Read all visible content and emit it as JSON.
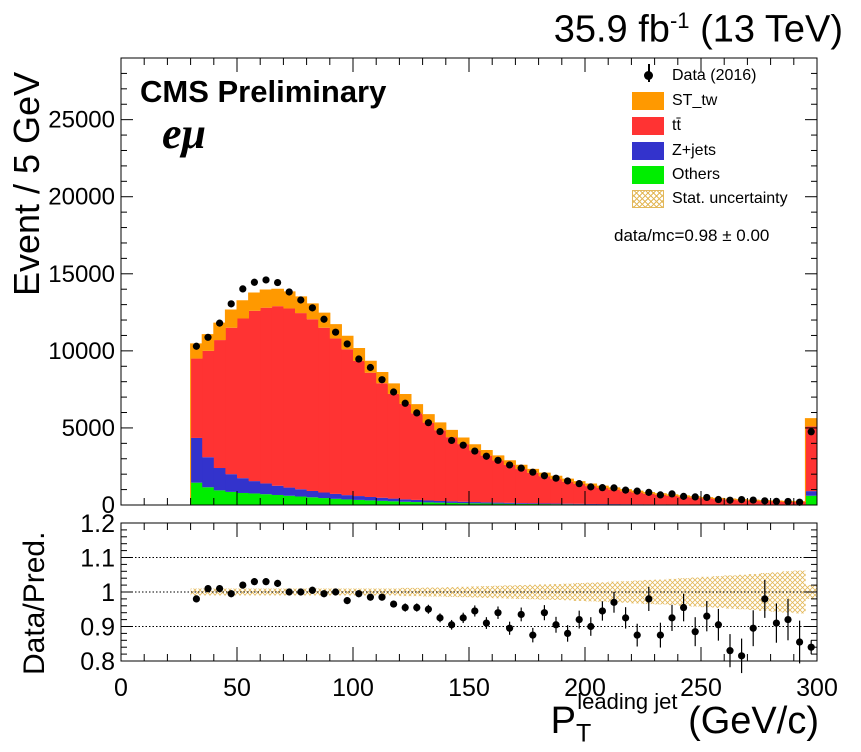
{
  "header": {
    "lumi_value": "35.9 fb",
    "lumi_exp": "-1",
    "lumi_energy": " (13 TeV)",
    "cms_label": "CMS Preliminary",
    "channel_label": "eμ"
  },
  "ratio_text": "data/mc=0.98 ± 0.00",
  "legend": [
    {
      "label": "Data (2016)",
      "kind": "data",
      "color": "#000000"
    },
    {
      "label": "ST_tw",
      "kind": "fill",
      "color": "#ff9900"
    },
    {
      "label": "tt̄",
      "kind": "fill",
      "color": "#ff3333"
    },
    {
      "label": "Z+jets",
      "kind": "fill",
      "color": "#3333cc"
    },
    {
      "label": "Others",
      "kind": "fill",
      "color": "#00ee00"
    },
    {
      "label": "Stat. uncertainty",
      "kind": "hatch",
      "color": "#e3b85a"
    }
  ],
  "axes": {
    "ylabel_main": "Event / 5 GeV",
    "ylabel_ratio": "Data/Pred.",
    "xlabel_main": "P",
    "xlabel_sub": "T",
    "xlabel_sup": "leading jet",
    "xlabel_unit": " (GeV/c)"
  },
  "chart_data": {
    "type": "bar",
    "stacked": true,
    "x_bin_width": 5,
    "x_bin_low_edges": [
      30,
      35,
      40,
      45,
      50,
      55,
      60,
      65,
      70,
      75,
      80,
      85,
      90,
      95,
      100,
      105,
      110,
      115,
      120,
      125,
      130,
      135,
      140,
      145,
      150,
      155,
      160,
      165,
      170,
      175,
      180,
      185,
      190,
      195,
      200,
      205,
      210,
      215,
      220,
      225,
      230,
      235,
      240,
      245,
      250,
      255,
      260,
      265,
      270,
      275,
      280,
      285,
      290,
      295
    ],
    "xlim": [
      0,
      300
    ],
    "ylim": [
      0,
      29000
    ],
    "x_ticks": [
      "0",
      "50",
      "100",
      "150",
      "200",
      "250",
      "300"
    ],
    "y_ticks": [
      "0",
      "5000",
      "10000",
      "15000",
      "20000",
      "25000"
    ],
    "series": [
      {
        "name": "Others",
        "color": "#00ee00",
        "values": [
          1450,
          1150,
          950,
          850,
          780,
          750,
          700,
          650,
          600,
          550,
          500,
          450,
          400,
          360,
          330,
          300,
          270,
          240,
          210,
          190,
          170,
          150,
          135,
          120,
          110,
          100,
          90,
          80,
          70,
          65,
          60,
          55,
          50,
          45,
          40,
          38,
          35,
          32,
          30,
          28,
          26,
          24,
          22,
          20,
          18,
          17,
          16,
          15,
          14,
          13,
          12,
          11,
          10,
          600
        ]
      },
      {
        "name": "Z+jets",
        "color": "#3333cc",
        "values": [
          2900,
          1950,
          1450,
          1150,
          960,
          800,
          700,
          600,
          530,
          470,
          410,
          360,
          320,
          280,
          250,
          220,
          200,
          175,
          155,
          140,
          125,
          110,
          100,
          90,
          80,
          72,
          65,
          58,
          52,
          47,
          42,
          38,
          34,
          30,
          27,
          24,
          22,
          20,
          18,
          16,
          15,
          14,
          13,
          12,
          11,
          10,
          9,
          8,
          8,
          7,
          7,
          6,
          6,
          300
        ]
      },
      {
        "name": "tt̄",
        "color": "#ff3333",
        "values": [
          5150,
          6900,
          8300,
          9500,
          10360,
          11050,
          11400,
          11650,
          11620,
          11430,
          11140,
          10690,
          10080,
          9460,
          8770,
          8060,
          7430,
          6790,
          6200,
          5620,
          5050,
          4590,
          4165,
          3740,
          3360,
          3030,
          2730,
          2460,
          2210,
          1980,
          1770,
          1590,
          1430,
          1290,
          1160,
          1040,
          940,
          845,
          760,
          680,
          615,
          550,
          495,
          445,
          400,
          355,
          320,
          290,
          260,
          235,
          215,
          195,
          180,
          4200
        ]
      },
      {
        "name": "ST_tw",
        "color": "#ff9900",
        "values": [
          950,
          1050,
          1100,
          1150,
          1150,
          1150,
          1150,
          1100,
          1080,
          1050,
          1000,
          950,
          900,
          850,
          800,
          750,
          700,
          650,
          600,
          560,
          520,
          480,
          440,
          400,
          360,
          330,
          300,
          270,
          245,
          220,
          200,
          180,
          165,
          150,
          135,
          122,
          110,
          100,
          90,
          82,
          74,
          67,
          61,
          55,
          50,
          46,
          42,
          38,
          35,
          32,
          29,
          27,
          25,
          500
        ]
      }
    ],
    "data_values": [
      10300,
      10880,
      11800,
      13050,
      14020,
      14450,
      14600,
      14430,
      13820,
      13300,
      12790,
      12050,
      11210,
      10450,
      9470,
      8920,
      8130,
      7330,
      6600,
      5975,
      5340,
      4765,
      4190,
      3880,
      3500,
      3165,
      2900,
      2600,
      2390,
      2130,
      1900,
      1740,
      1560,
      1385,
      1175,
      1125,
      1110,
      965,
      900,
      820,
      655,
      720,
      560,
      525,
      490,
      355,
      310,
      350,
      320,
      270,
      240,
      230,
      180,
      4750
    ],
    "ratio": {
      "ylabel": "Data/Pred.",
      "ylim": [
        0.8,
        1.2
      ],
      "y_ticks": [
        "0.8",
        "0.9",
        "1",
        "1.1",
        "1.2"
      ],
      "values": [
        0.98,
        1.01,
        1.01,
        0.995,
        1.02,
        1.03,
        1.03,
        1.025,
        1.0,
        1.0,
        1.005,
        0.995,
        1.0,
        0.975,
        0.995,
        0.985,
        0.985,
        0.965,
        0.955,
        0.955,
        0.95,
        0.925,
        0.905,
        0.925,
        0.945,
        0.91,
        0.94,
        0.895,
        0.935,
        0.875,
        0.94,
        0.905,
        0.88,
        0.92,
        0.9,
        0.945,
        0.97,
        0.925,
        0.875,
        0.98,
        0.875,
        0.925,
        0.955,
        0.885,
        0.93,
        0.905,
        0.83,
        0.815,
        0.895,
        0.98,
        0.91,
        0.92,
        0.855,
        0.84
      ],
      "errors": [
        0.01,
        0.01,
        0.01,
        0.01,
        0.01,
        0.01,
        0.01,
        0.01,
        0.01,
        0.01,
        0.01,
        0.01,
        0.01,
        0.01,
        0.01,
        0.01,
        0.01,
        0.01,
        0.012,
        0.012,
        0.013,
        0.013,
        0.014,
        0.015,
        0.016,
        0.017,
        0.018,
        0.019,
        0.02,
        0.021,
        0.022,
        0.023,
        0.024,
        0.026,
        0.027,
        0.028,
        0.03,
        0.031,
        0.033,
        0.035,
        0.036,
        0.038,
        0.04,
        0.042,
        0.044,
        0.046,
        0.048,
        0.05,
        0.052,
        0.055,
        0.057,
        0.06,
        0.062,
        0.02
      ],
      "stat_band": [
        0.01,
        0.01,
        0.01,
        0.01,
        0.01,
        0.01,
        0.01,
        0.01,
        0.01,
        0.01,
        0.01,
        0.01,
        0.01,
        0.01,
        0.01,
        0.01,
        0.01,
        0.01,
        0.012,
        0.012,
        0.013,
        0.013,
        0.014,
        0.015,
        0.016,
        0.017,
        0.018,
        0.019,
        0.02,
        0.021,
        0.022,
        0.023,
        0.024,
        0.026,
        0.027,
        0.028,
        0.03,
        0.031,
        0.033,
        0.035,
        0.036,
        0.038,
        0.04,
        0.042,
        0.044,
        0.046,
        0.048,
        0.05,
        0.052,
        0.055,
        0.057,
        0.06,
        0.062,
        0.02
      ],
      "reference_lines": [
        0.9,
        1.0,
        1.1
      ]
    }
  }
}
